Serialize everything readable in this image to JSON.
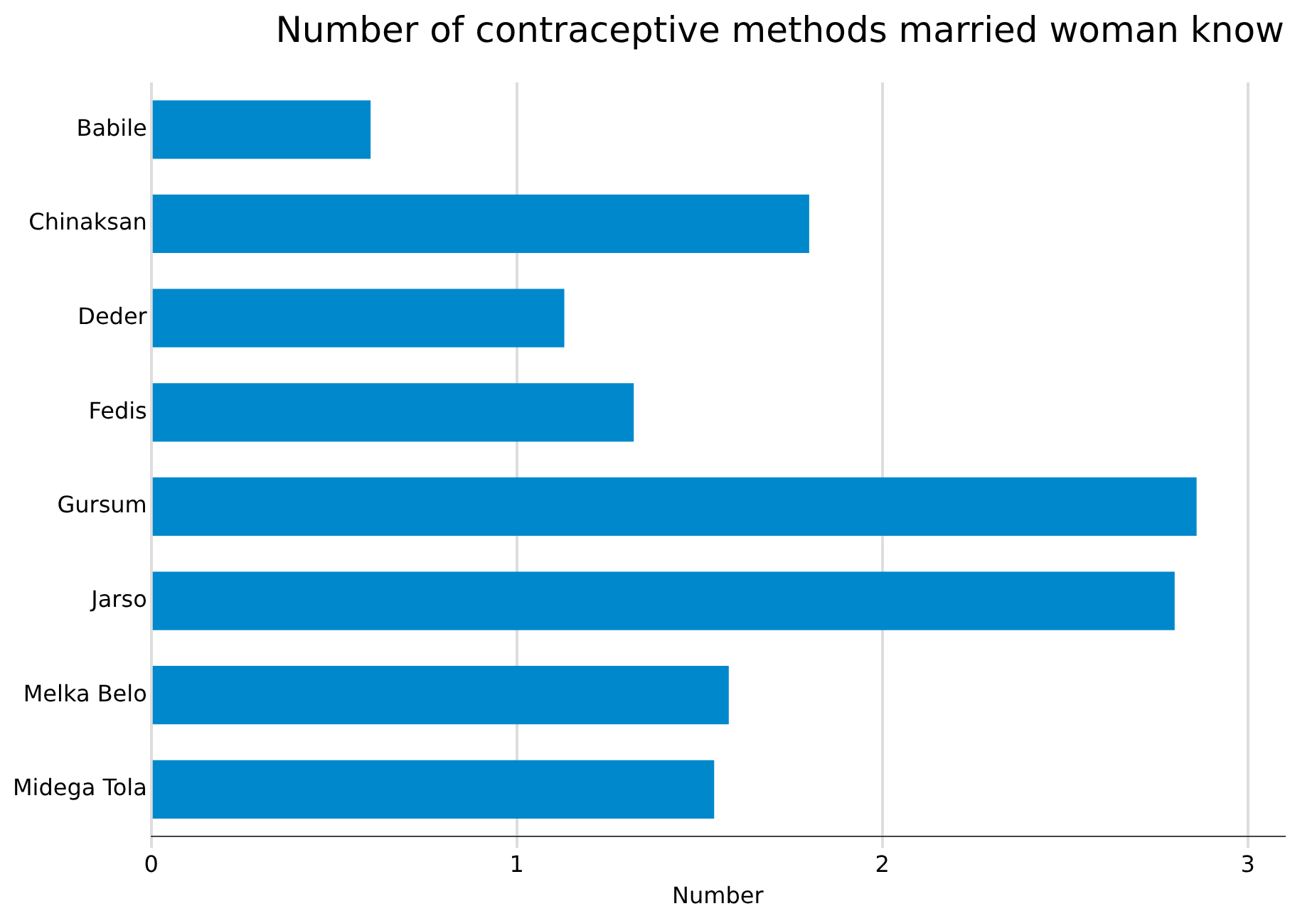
{
  "chart_data": {
    "type": "bar",
    "orientation": "horizontal",
    "title": "Number of contraceptive methods married woman know",
    "xlabel": "Number",
    "categories": [
      "Babile",
      "Chinaksan",
      "Deder",
      "Fedis",
      "Gursum",
      "Jarso",
      "Melka Belo",
      "Midega Tola"
    ],
    "values": [
      0.6,
      1.8,
      1.13,
      1.32,
      2.86,
      2.8,
      1.58,
      1.54
    ],
    "color": "#0088cc",
    "xlim": [
      0,
      3.1
    ],
    "xticks": [
      0,
      1,
      2,
      3
    ],
    "grid": "x"
  }
}
